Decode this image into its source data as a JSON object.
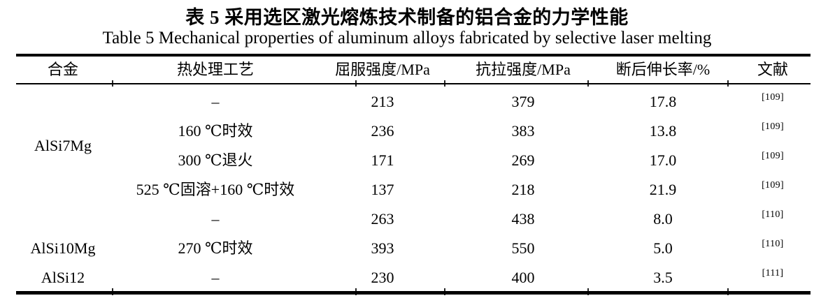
{
  "titles": {
    "zh": "表 5 采用选区激光熔炼技术制备的铝合金的力学性能",
    "en": "Table 5 Mechanical properties of aluminum alloys fabricated by selective laser melting"
  },
  "table": {
    "headers": [
      "合金",
      "热处理工艺",
      "屈服强度/MPa",
      "抗拉强度/MPa",
      "断后伸长率/%",
      "文献"
    ],
    "groups": [
      {
        "alloy": "AlSi7Mg",
        "rows": [
          {
            "treatment": "–",
            "yield_strength": "213",
            "tensile_strength": "379",
            "elongation": "17.8",
            "reference": "[109]"
          },
          {
            "treatment": "160 ℃时效",
            "yield_strength": "236",
            "tensile_strength": "383",
            "elongation": "13.8",
            "reference": "[109]"
          },
          {
            "treatment": "300 ℃退火",
            "yield_strength": "171",
            "tensile_strength": "269",
            "elongation": "17.0",
            "reference": "[109]"
          },
          {
            "treatment": "525 ℃固溶+160 ℃时效",
            "yield_strength": "137",
            "tensile_strength": "218",
            "elongation": "21.9",
            "reference": "[109]"
          }
        ]
      },
      {
        "alloy": "AlSi10Mg",
        "rows": [
          {
            "treatment": "–",
            "yield_strength": "263",
            "tensile_strength": "438",
            "elongation": "8.0",
            "reference": "[110]"
          },
          {
            "treatment": "270 ℃时效",
            "yield_strength": "393",
            "tensile_strength": "550",
            "elongation": "5.0",
            "reference": "[110]"
          }
        ]
      },
      {
        "alloy": "AlSi12",
        "rows": [
          {
            "treatment": "–",
            "yield_strength": "230",
            "tensile_strength": "400",
            "elongation": "3.5",
            "reference": "[111]"
          }
        ]
      }
    ]
  }
}
